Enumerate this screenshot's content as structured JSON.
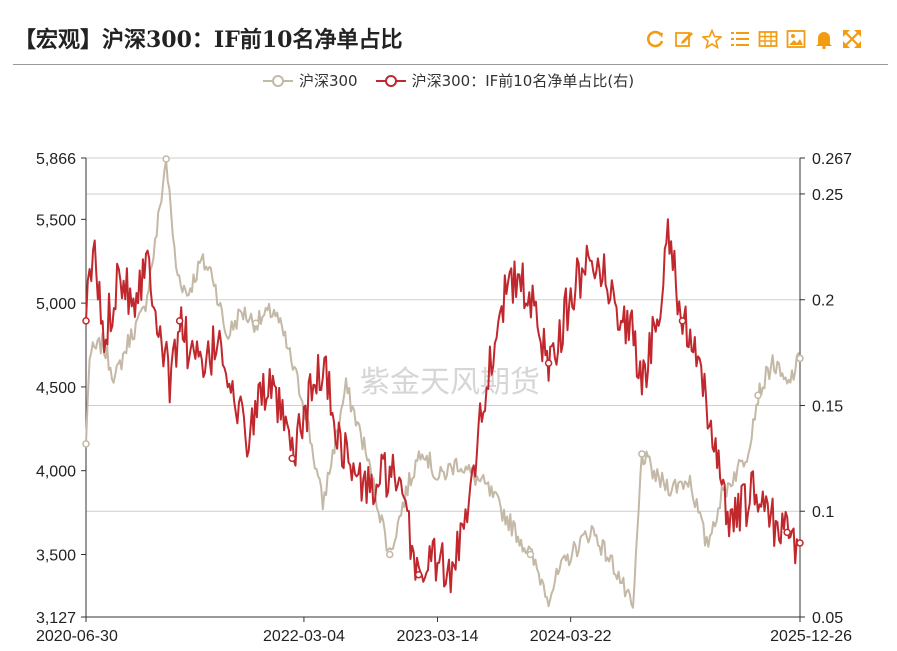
{
  "header": {
    "title": "【宏观】沪深300：IF前10名净单占比",
    "tools": [
      {
        "name": "refresh-icon"
      },
      {
        "name": "edit-icon"
      },
      {
        "name": "star-icon"
      },
      {
        "name": "list-icon"
      },
      {
        "name": "table-icon"
      },
      {
        "name": "image-icon"
      },
      {
        "name": "bell-icon"
      },
      {
        "name": "fullscreen-icon"
      }
    ],
    "accent": "#f39c12"
  },
  "watermark": "紫金天风期货",
  "chart_data": {
    "type": "line",
    "x_ticks": [
      "2020-06-30",
      "2022-03-04",
      "2023-03-14",
      "2024-03-22",
      "2025-12-26"
    ],
    "x_range": [
      "2020-06-30",
      "2025-12-26"
    ],
    "y_left": {
      "range": [
        3127,
        5866
      ],
      "ticks": [
        "5,866",
        "5,500",
        "5,000",
        "4,500",
        "4,000",
        "3,500",
        "3,127"
      ]
    },
    "y_right": {
      "range": [
        0.05,
        0.267
      ],
      "ticks": [
        "0.267",
        "0.25",
        "0.2",
        "0.15",
        "0.1",
        "0.05"
      ]
    },
    "series": [
      {
        "name": "沪深300",
        "axis": "left",
        "color": "#c4b8a6",
        "points": [
          [
            "2020-06-30",
            4160
          ],
          [
            "2020-07-10",
            4690
          ],
          [
            "2020-08-15",
            4760
          ],
          [
            "2020-09-20",
            4550
          ],
          [
            "2020-10-30",
            4790
          ],
          [
            "2020-12-10",
            4950
          ],
          [
            "2021-01-10",
            5350
          ],
          [
            "2021-02-10",
            5860
          ],
          [
            "2021-03-10",
            5200
          ],
          [
            "2021-04-10",
            5050
          ],
          [
            "2021-05-20",
            5250
          ],
          [
            "2021-06-20",
            5180
          ],
          [
            "2021-07-30",
            4800
          ],
          [
            "2021-09-10",
            4950
          ],
          [
            "2021-10-20",
            4880
          ],
          [
            "2021-12-10",
            4960
          ],
          [
            "2022-01-10",
            4780
          ],
          [
            "2022-03-04",
            4400
          ],
          [
            "2022-04-26",
            3800
          ],
          [
            "2022-06-30",
            4500
          ],
          [
            "2022-08-20",
            4150
          ],
          [
            "2022-10-31",
            3500
          ],
          [
            "2022-12-20",
            3900
          ],
          [
            "2023-01-30",
            4150
          ],
          [
            "2023-03-14",
            3950
          ],
          [
            "2023-05-10",
            4050
          ],
          [
            "2023-07-30",
            3900
          ],
          [
            "2023-09-30",
            3700
          ],
          [
            "2023-11-30",
            3500
          ],
          [
            "2024-01-20",
            3250
          ],
          [
            "2024-02-20",
            3400
          ],
          [
            "2024-03-22",
            3500
          ],
          [
            "2024-05-20",
            3650
          ],
          [
            "2024-07-30",
            3400
          ],
          [
            "2024-09-13",
            3160
          ],
          [
            "2024-10-08",
            4100
          ],
          [
            "2024-11-20",
            3950
          ],
          [
            "2024-12-31",
            3900
          ],
          [
            "2025-02-20",
            3950
          ],
          [
            "2025-04-08",
            3550
          ],
          [
            "2025-05-20",
            3850
          ],
          [
            "2025-07-30",
            4100
          ],
          [
            "2025-08-30",
            4450
          ],
          [
            "2025-10-10",
            4650
          ],
          [
            "2025-11-20",
            4500
          ],
          [
            "2025-12-26",
            4670
          ]
        ]
      },
      {
        "name": "沪深300：IF前10名净单占比(右)",
        "axis": "right",
        "color": "#c0282d",
        "points": [
          [
            "2020-06-30",
            0.19
          ],
          [
            "2020-07-20",
            0.225
          ],
          [
            "2020-08-20",
            0.18
          ],
          [
            "2020-09-30",
            0.215
          ],
          [
            "2020-11-10",
            0.2
          ],
          [
            "2020-12-20",
            0.22
          ],
          [
            "2021-01-20",
            0.19
          ],
          [
            "2021-02-20",
            0.16
          ],
          [
            "2021-03-20",
            0.19
          ],
          [
            "2021-04-20",
            0.175
          ],
          [
            "2021-05-30",
            0.165
          ],
          [
            "2021-07-10",
            0.185
          ],
          [
            "2021-08-20",
            0.15
          ],
          [
            "2021-09-30",
            0.135
          ],
          [
            "2021-11-10",
            0.16
          ],
          [
            "2021-12-20",
            0.15
          ],
          [
            "2022-01-30",
            0.125
          ],
          [
            "2022-03-04",
            0.145
          ],
          [
            "2022-04-26",
            0.17
          ],
          [
            "2022-06-10",
            0.135
          ],
          [
            "2022-07-30",
            0.115
          ],
          [
            "2022-09-10",
            0.11
          ],
          [
            "2022-10-31",
            0.12
          ],
          [
            "2022-12-10",
            0.1
          ],
          [
            "2023-01-20",
            0.07
          ],
          [
            "2023-03-14",
            0.08
          ],
          [
            "2023-04-20",
            0.065
          ],
          [
            "2023-06-10",
            0.11
          ],
          [
            "2023-07-30",
            0.16
          ],
          [
            "2023-09-10",
            0.2
          ],
          [
            "2023-10-30",
            0.21
          ],
          [
            "2023-12-20",
            0.19
          ],
          [
            "2024-01-20",
            0.17
          ],
          [
            "2024-03-22",
            0.2
          ],
          [
            "2024-05-20",
            0.225
          ],
          [
            "2024-07-20",
            0.2
          ],
          [
            "2024-09-10",
            0.185
          ],
          [
            "2024-10-08",
            0.16
          ],
          [
            "2024-11-20",
            0.19
          ],
          [
            "2024-12-20",
            0.235
          ],
          [
            "2025-01-30",
            0.19
          ],
          [
            "2025-03-10",
            0.17
          ],
          [
            "2025-04-20",
            0.14
          ],
          [
            "2025-05-20",
            0.12
          ],
          [
            "2025-06-10",
            0.09
          ],
          [
            "2025-07-10",
            0.1
          ],
          [
            "2025-08-30",
            0.11
          ],
          [
            "2025-10-10",
            0.095
          ],
          [
            "2025-11-20",
            0.09
          ],
          [
            "2025-12-26",
            0.085
          ]
        ]
      }
    ],
    "grid": true,
    "legend_position": "top-center"
  }
}
